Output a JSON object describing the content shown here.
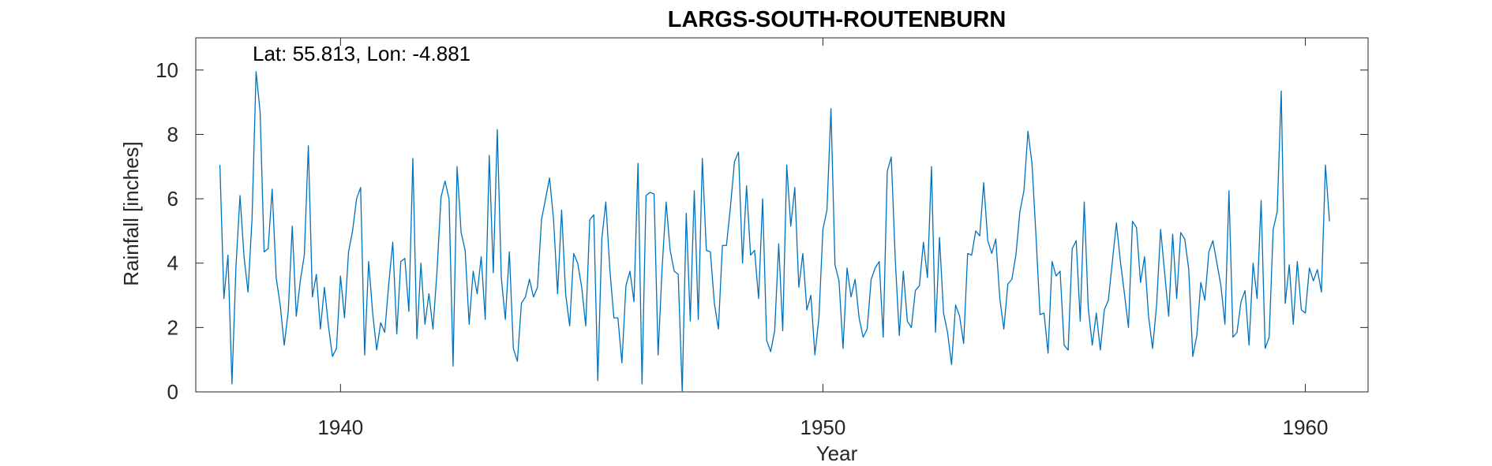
{
  "chart_data": {
    "type": "line",
    "title": "LARGS-SOUTH-ROUTENBURN",
    "xlabel": "Year",
    "ylabel": "Rainfall [inches]",
    "annotation": "Lat: 55.813, Lon: -4.881",
    "xlim": [
      1937,
      1961.3
    ],
    "ylim": [
      0,
      11
    ],
    "x_ticks": [
      1940,
      1950,
      1960
    ],
    "y_ticks": [
      0,
      2,
      4,
      6,
      8,
      10
    ],
    "grid": false,
    "line_color": "#0072BD",
    "series": [
      {
        "x_start": 1937.5,
        "step": 0.0833333,
        "values": [
          7.05,
          2.9,
          4.25,
          0.25,
          3.9,
          6.1,
          4.2,
          3.1,
          5.4,
          9.95,
          8.7,
          4.35,
          4.45,
          6.3,
          3.55,
          2.7,
          1.45,
          2.5,
          5.15,
          2.35,
          3.45,
          4.25,
          7.65,
          2.95,
          3.65,
          1.95,
          3.25,
          2.05,
          1.1,
          1.35,
          3.6,
          2.3,
          4.35,
          5.0,
          6.0,
          6.35,
          1.15,
          4.05,
          2.45,
          1.3,
          2.15,
          1.85,
          3.35,
          4.65,
          1.8,
          4.05,
          4.15,
          2.5,
          7.25,
          1.65,
          4.0,
          2.1,
          3.05,
          1.95,
          3.75,
          6.05,
          6.55,
          6.0,
          0.8,
          7.0,
          4.95,
          4.4,
          2.1,
          3.75,
          3.05,
          4.2,
          2.25,
          7.35,
          3.7,
          8.15,
          3.55,
          2.25,
          4.35,
          1.35,
          0.95,
          2.75,
          2.95,
          3.5,
          2.95,
          3.25,
          5.35,
          6.0,
          6.65,
          5.35,
          3.05,
          5.65,
          3.05,
          2.05,
          4.3,
          4.0,
          3.25,
          2.05,
          5.35,
          5.5,
          0.35,
          4.75,
          5.9,
          3.8,
          2.3,
          2.3,
          0.9,
          3.3,
          3.75,
          2.8,
          7.1,
          0.25,
          6.1,
          6.2,
          6.15,
          1.15,
          3.85,
          5.9,
          4.4,
          3.75,
          3.65,
          0.0,
          5.55,
          2.2,
          6.25,
          2.25,
          7.25,
          4.4,
          4.35,
          2.75,
          1.95,
          4.55,
          4.55,
          5.75,
          7.15,
          7.45,
          4.0,
          6.4,
          4.25,
          4.4,
          2.9,
          6.0,
          1.6,
          1.25,
          1.9,
          4.6,
          1.9,
          7.05,
          5.15,
          6.35,
          3.25,
          4.3,
          2.55,
          3.0,
          1.15,
          2.3,
          5.05,
          5.65,
          8.8,
          3.95,
          3.45,
          1.35,
          3.85,
          2.95,
          3.5,
          2.3,
          1.7,
          1.95,
          3.5,
          3.85,
          4.05,
          1.7,
          6.85,
          7.3,
          4.1,
          1.75,
          3.75,
          2.2,
          2.0,
          3.15,
          3.3,
          4.65,
          3.55,
          7.0,
          1.85,
          4.8,
          2.45,
          1.85,
          0.85,
          2.7,
          2.35,
          1.5,
          4.3,
          4.25,
          5.0,
          4.85,
          6.5,
          4.7,
          4.3,
          4.75,
          2.9,
          1.95,
          3.35,
          3.5,
          4.25,
          5.6,
          6.25,
          8.1,
          7.1,
          4.85,
          2.4,
          2.45,
          1.2,
          4.05,
          3.6,
          3.75,
          1.45,
          1.3,
          4.45,
          4.7,
          2.2,
          5.9,
          2.6,
          1.45,
          2.45,
          1.3,
          2.55,
          2.85,
          4.05,
          5.25,
          4.05,
          3.05,
          2.0,
          5.3,
          5.1,
          3.4,
          4.2,
          2.35,
          1.35,
          2.7,
          5.05,
          3.7,
          2.35,
          4.9,
          2.9,
          4.95,
          4.75,
          3.8,
          1.1,
          1.75,
          3.4,
          2.85,
          4.35,
          4.7,
          4.0,
          3.3,
          2.1,
          6.25,
          1.7,
          1.85,
          2.8,
          3.15,
          1.45,
          4.0,
          2.9,
          5.95,
          1.35,
          1.7,
          5.05,
          5.6,
          9.35,
          2.75,
          3.95,
          2.1,
          4.05,
          2.55,
          2.45,
          3.85,
          3.45,
          3.8,
          3.1,
          7.05,
          5.3
        ]
      }
    ]
  }
}
